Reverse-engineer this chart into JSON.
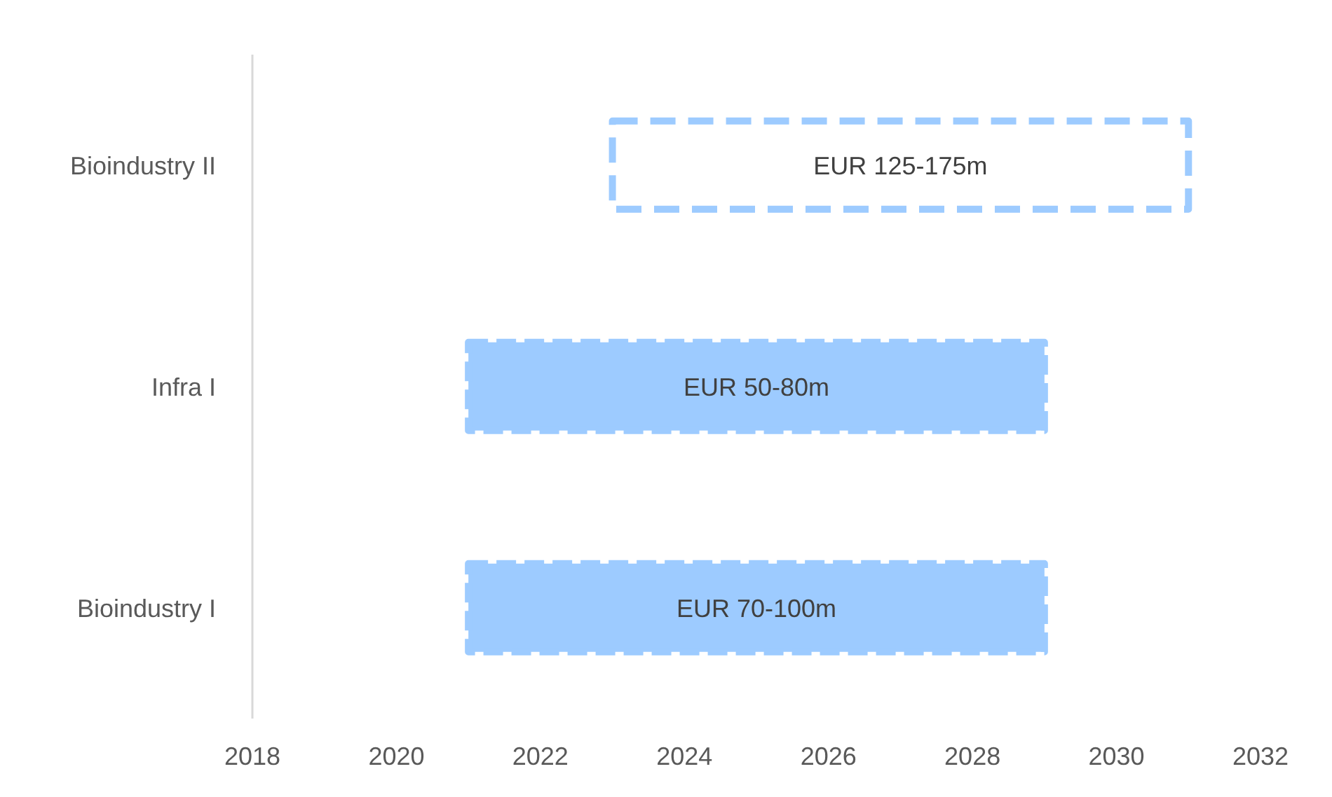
{
  "chart_data": {
    "type": "bar",
    "orientation": "horizontal",
    "categories": [
      "Bioindustry II",
      "Infra I",
      "Bioindustry I"
    ],
    "series": [
      {
        "color": "#9dcbff",
        "line_style": "dashed",
        "values": [
          8,
          null,
          null
        ],
        "base": [
          2023,
          null,
          null
        ]
      },
      {
        "color": "#9dcbff",
        "values": [
          null,
          8,
          8
        ],
        "base": [
          null,
          2021,
          2021
        ]
      }
    ],
    "value_labels": [
      "EUR 125-175m",
      "EUR 50-80m",
      "EUR 70-100m"
    ],
    "xlim": [
      2018,
      2032
    ],
    "xticks": [
      2018,
      2020,
      2022,
      2024,
      2026,
      2028,
      2030,
      2032
    ],
    "grid": false
  }
}
